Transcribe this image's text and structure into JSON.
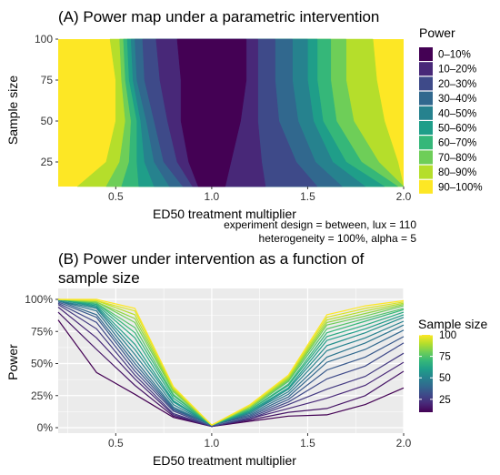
{
  "chart_data": [
    {
      "type": "heatmap",
      "title": "(A) Power map under a parametric intervention",
      "xlabel": "ED50 treatment multiplier",
      "ylabel": "Sample size",
      "xlim": [
        0.2,
        2.0
      ],
      "ylim": [
        10,
        100
      ],
      "x_ticks": [
        "0.5",
        "1.0",
        "1.5",
        "2.0"
      ],
      "y_ticks": [
        "25",
        "50",
        "75",
        "100"
      ],
      "legend_title": "Power",
      "legend_position": "right",
      "grid": true,
      "bins": [
        {
          "label": "0–10%",
          "color": "#440154"
        },
        {
          "label": "10–20%",
          "color": "#482878"
        },
        {
          "label": "20–30%",
          "color": "#3e4a89"
        },
        {
          "label": "30–40%",
          "color": "#31688e"
        },
        {
          "label": "40–50%",
          "color": "#26828e"
        },
        {
          "label": "50–60%",
          "color": "#1f9e89"
        },
        {
          "label": "60–70%",
          "color": "#35b779"
        },
        {
          "label": "70–80%",
          "color": "#6ece58"
        },
        {
          "label": "80–90%",
          "color": "#b5de2b"
        },
        {
          "label": "90–100%",
          "color": "#fde725"
        }
      ],
      "bin_upper_x": {
        "sample_sizes": [
          10,
          25,
          50,
          75,
          100
        ],
        "left": [
          [
            0.93,
            0.88,
            0.84,
            0.84,
            0.82
          ],
          [
            0.9,
            0.82,
            0.77,
            0.73,
            0.71
          ],
          [
            0.85,
            0.75,
            0.7,
            0.65,
            0.64
          ],
          [
            0.78,
            0.7,
            0.66,
            0.61,
            0.6
          ],
          [
            0.7,
            0.65,
            0.63,
            0.59,
            0.58
          ],
          [
            0.62,
            0.61,
            0.61,
            0.57,
            0.56
          ],
          [
            0.53,
            0.57,
            0.58,
            0.55,
            0.54
          ],
          [
            0.45,
            0.52,
            0.55,
            0.53,
            0.52
          ],
          [
            0.3,
            0.45,
            0.5,
            0.5,
            0.47
          ]
        ],
        "right": [
          [
            1.07,
            1.1,
            1.15,
            1.18,
            1.18
          ],
          [
            1.28,
            1.26,
            1.24,
            1.24,
            1.24
          ],
          [
            1.55,
            1.44,
            1.35,
            1.33,
            1.33
          ],
          [
            1.68,
            1.54,
            1.45,
            1.42,
            1.42
          ],
          [
            1.8,
            1.63,
            1.53,
            1.5,
            1.5
          ],
          [
            1.9,
            1.7,
            1.58,
            1.55,
            1.55
          ],
          [
            1.97,
            1.78,
            1.65,
            1.62,
            1.62
          ],
          [
            2.0,
            1.87,
            1.74,
            1.7,
            1.7
          ],
          [
            2.0,
            1.97,
            1.9,
            1.86,
            1.84
          ]
        ]
      },
      "caption_lines": [
        "experiment design = between, lux = 110",
        "heterogeneity = 100%, alpha = 5"
      ]
    },
    {
      "type": "line",
      "title_lines": [
        "(B) Power under intervention as a function of",
        "sample size"
      ],
      "xlabel": "ED50 treatment multiplier",
      "ylabel": "Power",
      "xlim": [
        0.2,
        2.0
      ],
      "ylim": [
        0,
        100
      ],
      "x_ticks": [
        "0.5",
        "1.0",
        "1.5",
        "2.0"
      ],
      "y_ticks": [
        "0%",
        "25%",
        "50%",
        "75%",
        "100%"
      ],
      "legend_title": "Sample size",
      "legend_position": "right",
      "colorbar_ticks": [
        "25",
        "50",
        "75",
        "100"
      ],
      "colorbar_range": [
        10,
        100
      ],
      "grid": true,
      "x": [
        0.2,
        0.4,
        0.6,
        0.8,
        1.0,
        1.2,
        1.4,
        1.6,
        1.8,
        2.0
      ],
      "series": [
        {
          "n": 10,
          "values": [
            84,
            43,
            26,
            8,
            1,
            5,
            9,
            10,
            18,
            31
          ]
        },
        {
          "n": 15,
          "values": [
            90,
            61,
            33,
            9,
            1,
            6,
            12,
            15,
            25,
            44
          ]
        },
        {
          "n": 20,
          "values": [
            94,
            70,
            38,
            10,
            1,
            7,
            15,
            23,
            33,
            51
          ]
        },
        {
          "n": 25,
          "values": [
            96,
            77,
            41,
            11,
            1,
            7,
            18,
            30,
            40,
            58
          ]
        },
        {
          "n": 30,
          "values": [
            97,
            82,
            44,
            13,
            1,
            8,
            20,
            38,
            48,
            66
          ]
        },
        {
          "n": 35,
          "values": [
            98,
            86,
            47,
            14,
            2,
            9,
            22,
            45,
            55,
            71
          ]
        },
        {
          "n": 40,
          "values": [
            99,
            88,
            50,
            15,
            2,
            10,
            24,
            51,
            61,
            76
          ]
        },
        {
          "n": 45,
          "values": [
            99,
            91,
            53,
            16,
            2,
            11,
            26,
            55,
            66,
            80
          ]
        },
        {
          "n": 50,
          "values": [
            99,
            93,
            57,
            18,
            2,
            12,
            28,
            60,
            70,
            83
          ]
        },
        {
          "n": 55,
          "values": [
            100,
            94,
            61,
            20,
            2,
            12,
            30,
            64,
            74,
            86
          ]
        },
        {
          "n": 60,
          "values": [
            100,
            95,
            65,
            21,
            2,
            13,
            31,
            68,
            77,
            88
          ]
        },
        {
          "n": 65,
          "values": [
            100,
            96,
            70,
            23,
            2,
            14,
            33,
            71,
            80,
            90
          ]
        },
        {
          "n": 70,
          "values": [
            100,
            97,
            74,
            25,
            2,
            14,
            34,
            74,
            83,
            92
          ]
        },
        {
          "n": 75,
          "values": [
            100,
            97,
            78,
            26,
            2,
            15,
            36,
            77,
            85,
            93
          ]
        },
        {
          "n": 80,
          "values": [
            100,
            98,
            82,
            28,
            2,
            16,
            37,
            80,
            87,
            95
          ]
        },
        {
          "n": 85,
          "values": [
            100,
            98,
            85,
            29,
            2,
            16,
            38,
            82,
            89,
            96
          ]
        },
        {
          "n": 90,
          "values": [
            100,
            99,
            88,
            30,
            2,
            17,
            39,
            84,
            91,
            97
          ]
        },
        {
          "n": 95,
          "values": [
            100,
            99,
            91,
            31,
            2,
            17,
            40,
            86,
            93,
            98
          ]
        },
        {
          "n": 100,
          "values": [
            100,
            100,
            93,
            32,
            2,
            18,
            41,
            88,
            95,
            99
          ]
        }
      ]
    }
  ]
}
